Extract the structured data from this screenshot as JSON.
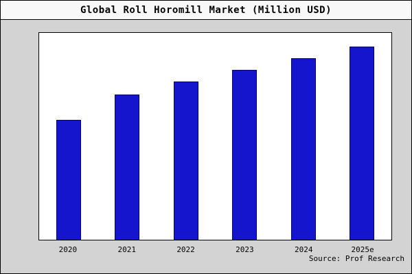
{
  "chart_data": {
    "type": "bar",
    "title": "Global Roll Horomill Market (Million USD)",
    "categories": [
      "2020",
      "2021",
      "2022",
      "2023",
      "2024",
      "2025e"
    ],
    "values": [
      62,
      75,
      82,
      88,
      94,
      100
    ],
    "xlabel": "",
    "ylabel": "",
    "ylim": [
      0,
      107
    ],
    "grid": false,
    "legend": "none",
    "bar_color": "#1515cd",
    "bar_edge_color": "#00006a",
    "background_color": "#d3d3d3",
    "plot_background_color": "#ffffff",
    "source": "Source: Prof Research"
  }
}
